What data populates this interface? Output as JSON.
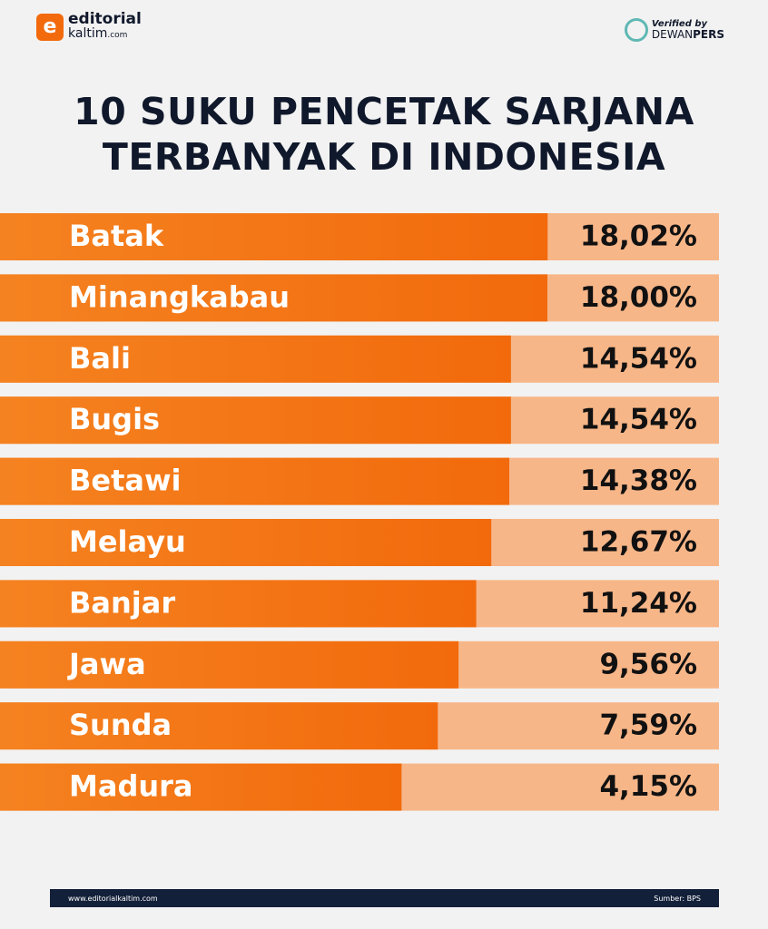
{
  "brand": {
    "name": "editorial",
    "sub": "kaltim",
    "suffix": ".com"
  },
  "verified": {
    "text": "Verified by",
    "org1": "DEWAN",
    "org2": "PERS"
  },
  "chart_data": {
    "type": "bar",
    "orientation": "horizontal",
    "title": "10 SUKU PENCETAK SARJANA TERBANYAK DI INDONESIA",
    "categories": [
      "Batak",
      "Minangkabau",
      "Bali",
      "Bugis",
      "Betawi",
      "Melayu",
      "Banjar",
      "Jawa",
      "Sunda",
      "Madura"
    ],
    "values": [
      18.02,
      18.0,
      14.54,
      14.54,
      14.38,
      12.67,
      11.24,
      9.56,
      7.59,
      4.15
    ],
    "value_labels": [
      "18,02%",
      "18,00%",
      "14,54%",
      "14,54%",
      "14,38%",
      "12,67%",
      "11,24%",
      "9,56%",
      "7,59%",
      "4,15%"
    ],
    "color": "#f26a0c",
    "track_color": "#f7b688",
    "xlim": [
      -34,
      34.3
    ]
  },
  "footer": {
    "url": "www.editorialkaltim.com",
    "source": "Sumber: BPS"
  }
}
